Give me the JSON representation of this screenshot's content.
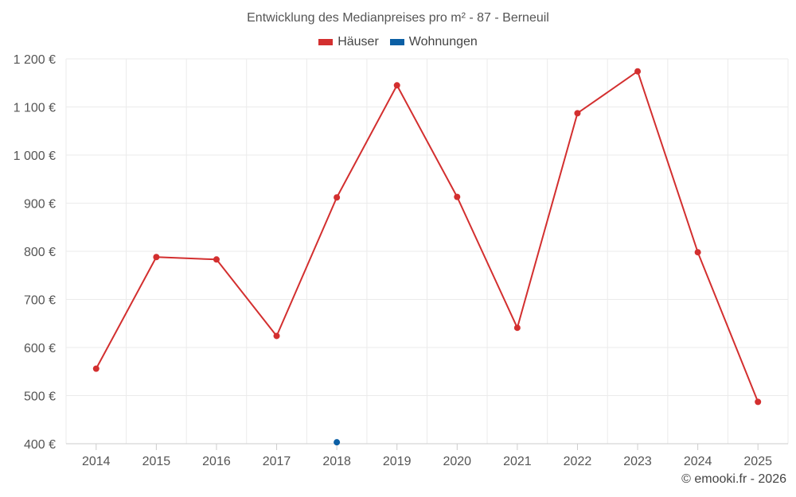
{
  "chart_data": {
    "type": "line",
    "title": "Entwicklung des Medianpreises pro m² - 87 - Berneuil",
    "categories": [
      "2014",
      "2015",
      "2016",
      "2017",
      "2018",
      "2019",
      "2020",
      "2021",
      "2022",
      "2023",
      "2024",
      "2025"
    ],
    "ylim": [
      400,
      1200
    ],
    "yticks": [
      400,
      500,
      600,
      700,
      800,
      900,
      1000,
      1100,
      1200
    ],
    "ytick_labels": [
      "400 €",
      "500 €",
      "600 €",
      "700 €",
      "800 €",
      "900 €",
      "1 000 €",
      "1 100 €",
      "1 200 €"
    ],
    "series": [
      {
        "name": "Häuser",
        "color": "#d32f2f",
        "values": [
          556,
          788,
          783,
          624,
          912,
          1145,
          913,
          641,
          1087,
          1174,
          798,
          487
        ]
      },
      {
        "name": "Wohnungen",
        "color": "#0b5fa5",
        "values": [
          null,
          null,
          null,
          null,
          403,
          null,
          null,
          null,
          null,
          null,
          null,
          null
        ]
      }
    ],
    "grid": true,
    "legend_position": "top-center"
  },
  "credit": "© emooki.fr - 2026"
}
